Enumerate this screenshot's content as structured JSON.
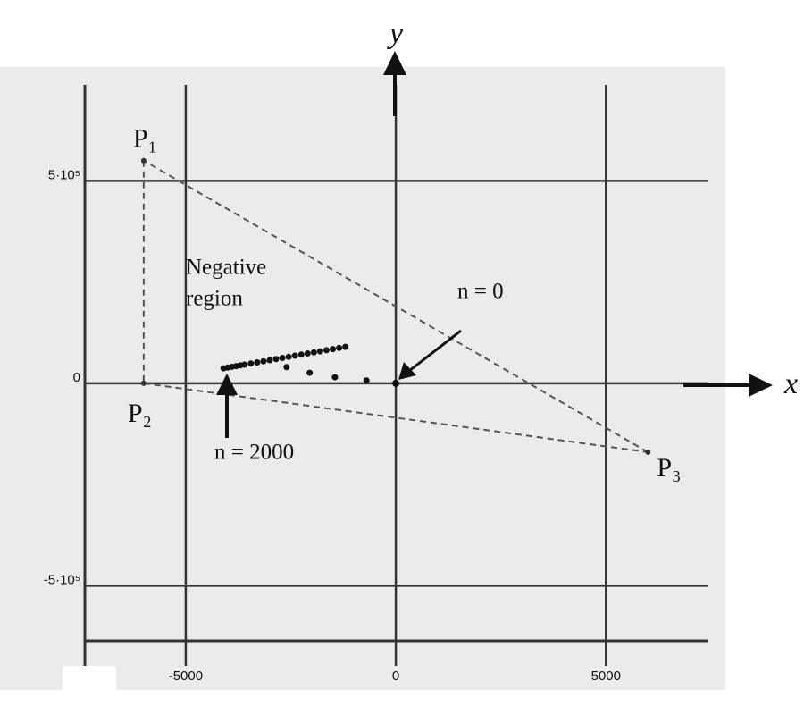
{
  "chart_data": {
    "type": "scatter",
    "xlabel": "x",
    "ylabel": "y",
    "xlim": [
      -7400,
      7800
    ],
    "ylim": [
      -636000,
      737000
    ],
    "xticks": [
      -5000,
      0,
      5000
    ],
    "yticks": [
      {
        "value": 500000,
        "label": "5·10⁵"
      },
      0,
      {
        "value": -500000,
        "label": "-5·10⁵"
      }
    ],
    "grid": true,
    "color": "#111",
    "x": [
      -4100,
      -4000,
      -3900,
      -3800,
      -3700,
      -3600,
      -3450,
      -3300,
      -3150,
      -3000,
      -2850,
      -2700,
      -2550,
      -2400,
      -2250,
      -2100,
      -1950,
      -1800,
      -1650,
      -1500,
      -1350,
      -1200,
      -2600,
      -2050,
      -1450,
      -700,
      0
    ],
    "values": [
      37000,
      38800,
      40700,
      42500,
      44400,
      46100,
      48900,
      51600,
      54400,
      57100,
      59800,
      62600,
      65300,
      68100,
      70800,
      73600,
      76300,
      79000,
      81800,
      84500,
      87300,
      90000,
      40000,
      26000,
      15000,
      7000,
      0
    ],
    "vertices": [
      {
        "label": "P₁",
        "x": -6000,
        "y": 550000
      },
      {
        "label": "P₂",
        "x": -6000,
        "y": 0
      },
      {
        "label": "P₃",
        "x": 6000,
        "y": -170000
      }
    ],
    "annotations": [
      "Negative",
      "region",
      "n = 0",
      "n = 2000"
    ]
  }
}
